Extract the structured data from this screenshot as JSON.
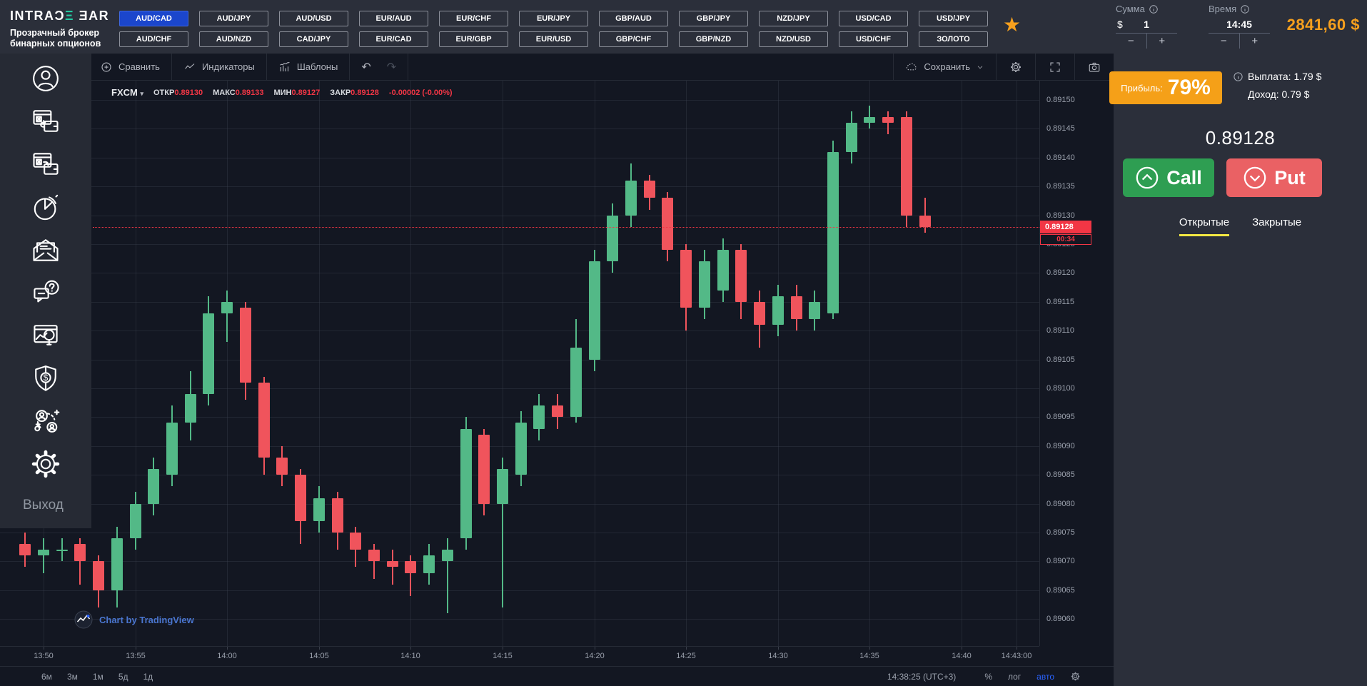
{
  "topbar": {
    "logo": {
      "part1": "INTRAƆ",
      "accent": "Ξ",
      "part2": " ƎAR",
      "subtitle1": "Прозрачный брокер",
      "subtitle2": "бинарных опционов"
    },
    "pairs_row1": [
      "AUD/CAD",
      "AUD/JPY",
      "AUD/USD",
      "EUR/AUD",
      "EUR/CHF",
      "EUR/JPY",
      "GBP/AUD",
      "GBP/JPY",
      "NZD/JPY",
      "USD/CAD",
      "USD/JPY"
    ],
    "pairs_row2": [
      "AUD/CHF",
      "AUD/NZD",
      "CAD/JPY",
      "EUR/CAD",
      "EUR/GBP",
      "EUR/USD",
      "GBP/CHF",
      "GBP/NZD",
      "NZD/USD",
      "USD/CHF",
      "ЗОЛОТО"
    ],
    "selected_pair": "AUD/CAD",
    "amount": {
      "label": "Сумма",
      "currency": "$",
      "value": "1",
      "minus": "−",
      "plus": "+"
    },
    "time": {
      "label": "Время",
      "value": "14:45",
      "minus": "−",
      "plus": "+"
    },
    "balance": "2841,60 $"
  },
  "sidebar": {
    "items": [
      {
        "id": "profile",
        "icon": "profile"
      },
      {
        "id": "deposit",
        "icon": "deposit"
      },
      {
        "id": "withdraw",
        "icon": "withdraw"
      },
      {
        "id": "statistics",
        "icon": "statistics"
      },
      {
        "id": "mail",
        "icon": "mail"
      },
      {
        "id": "support",
        "icon": "support"
      },
      {
        "id": "analytics",
        "icon": "analytics"
      },
      {
        "id": "safety",
        "icon": "safety"
      },
      {
        "id": "referral",
        "icon": "referral"
      },
      {
        "id": "settings",
        "icon": "settings"
      }
    ],
    "logout_label": "Выход"
  },
  "chart": {
    "toolbar": {
      "compare": "Сравнить",
      "indicators": "Индикаторы",
      "templates": "Шаблоны",
      "undo": "↶",
      "redo": "↷",
      "save": "Сохранить"
    },
    "legend": {
      "symbol": "FXCM",
      "caret": "▾",
      "open_label": "ОТКР",
      "open": "0.89130",
      "high_label": "МАКС",
      "high": "0.89133",
      "low_label": "МИН",
      "low": "0.89127",
      "close_label": "ЗАКР",
      "close": "0.89128",
      "change": "-0.00002 (-0.00%)"
    },
    "price_axis": [
      "0.89150",
      "0.89145",
      "0.89140",
      "0.89135",
      "0.89130",
      "0.89125",
      "0.89120",
      "0.89115",
      "0.89110",
      "0.89105",
      "0.89100",
      "0.89095",
      "0.89090",
      "0.89085",
      "0.89080",
      "0.89075",
      "0.89070",
      "0.89065",
      "0.89060"
    ],
    "time_axis": [
      "13:50",
      "13:55",
      "14:00",
      "14:05",
      "14:10",
      "14:15",
      "14:20",
      "14:25",
      "14:30",
      "14:35",
      "14:40",
      "14:43:00"
    ],
    "current_price": "0.89128",
    "countdown": "00:34",
    "watermark": "Chart by TradingView",
    "bottom": {
      "intervals": [
        "6м",
        "3м",
        "1м",
        "5д",
        "1д"
      ],
      "clock": "14:38:25 (UTC+3)",
      "percent": "%",
      "log": "лог",
      "auto": "авто"
    }
  },
  "chart_data": {
    "type": "candlestick",
    "symbol": "FXCM AUD/CAD",
    "interval": "1m",
    "ylim": [
      0.89055,
      0.89155
    ],
    "up_color": "#53b987",
    "down_color": "#f0545c",
    "grid": true,
    "columns": [
      "time",
      "open",
      "high",
      "low",
      "close"
    ],
    "rows": [
      [
        "13:49",
        0.89073,
        0.89075,
        0.89069,
        0.89071
      ],
      [
        "13:50",
        0.89071,
        0.89074,
        0.89068,
        0.89072
      ],
      [
        "13:51",
        0.89072,
        0.89074,
        0.8907,
        0.89072
      ],
      [
        "13:52",
        0.89073,
        0.89074,
        0.89066,
        0.8907
      ],
      [
        "13:53",
        0.8907,
        0.89071,
        0.89062,
        0.89065
      ],
      [
        "13:54",
        0.89065,
        0.89076,
        0.89062,
        0.89074
      ],
      [
        "13:55",
        0.89074,
        0.89082,
        0.89072,
        0.8908
      ],
      [
        "13:56",
        0.8908,
        0.89088,
        0.89078,
        0.89086
      ],
      [
        "13:57",
        0.89085,
        0.89097,
        0.89083,
        0.89094
      ],
      [
        "13:58",
        0.89094,
        0.89103,
        0.89091,
        0.89099
      ],
      [
        "13:59",
        0.89099,
        0.89116,
        0.89097,
        0.89113
      ],
      [
        "14:00",
        0.89113,
        0.89117,
        0.89108,
        0.89115
      ],
      [
        "14:01",
        0.89114,
        0.89115,
        0.89098,
        0.89101
      ],
      [
        "14:02",
        0.89101,
        0.89102,
        0.89085,
        0.89088
      ],
      [
        "14:03",
        0.89088,
        0.8909,
        0.89083,
        0.89085
      ],
      [
        "14:04",
        0.89085,
        0.89086,
        0.89073,
        0.89077
      ],
      [
        "14:05",
        0.89077,
        0.89083,
        0.89075,
        0.89081
      ],
      [
        "14:06",
        0.89081,
        0.89082,
        0.89072,
        0.89075
      ],
      [
        "14:07",
        0.89075,
        0.89076,
        0.89069,
        0.89072
      ],
      [
        "14:08",
        0.89072,
        0.89073,
        0.89067,
        0.8907
      ],
      [
        "14:09",
        0.8907,
        0.89072,
        0.89066,
        0.89069
      ],
      [
        "14:10",
        0.8907,
        0.89071,
        0.89064,
        0.89068
      ],
      [
        "14:11",
        0.89068,
        0.89073,
        0.89066,
        0.89071
      ],
      [
        "14:12",
        0.8907,
        0.89074,
        0.89061,
        0.89072
      ],
      [
        "14:13",
        0.89074,
        0.89095,
        0.89072,
        0.89093
      ],
      [
        "14:14",
        0.89092,
        0.89093,
        0.89078,
        0.8908
      ],
      [
        "14:15",
        0.8908,
        0.89088,
        0.89062,
        0.89086
      ],
      [
        "14:16",
        0.89085,
        0.89096,
        0.89083,
        0.89094
      ],
      [
        "14:17",
        0.89093,
        0.89099,
        0.89091,
        0.89097
      ],
      [
        "14:18",
        0.89097,
        0.89099,
        0.89093,
        0.89095
      ],
      [
        "14:19",
        0.89095,
        0.89112,
        0.89094,
        0.89107
      ],
      [
        "14:20",
        0.89105,
        0.89124,
        0.89103,
        0.89122
      ],
      [
        "14:21",
        0.89122,
        0.89132,
        0.8912,
        0.8913
      ],
      [
        "14:22",
        0.8913,
        0.89139,
        0.89128,
        0.89136
      ],
      [
        "14:23",
        0.89136,
        0.89137,
        0.89131,
        0.89133
      ],
      [
        "14:24",
        0.89133,
        0.89134,
        0.89122,
        0.89124
      ],
      [
        "14:25",
        0.89124,
        0.89125,
        0.8911,
        0.89114
      ],
      [
        "14:26",
        0.89114,
        0.89124,
        0.89112,
        0.89122
      ],
      [
        "14:27",
        0.89117,
        0.89126,
        0.89115,
        0.89124
      ],
      [
        "14:28",
        0.89124,
        0.89125,
        0.89112,
        0.89115
      ],
      [
        "14:29",
        0.89115,
        0.89117,
        0.89107,
        0.89111
      ],
      [
        "14:30",
        0.89111,
        0.89118,
        0.89109,
        0.89116
      ],
      [
        "14:31",
        0.89116,
        0.89118,
        0.8911,
        0.89112
      ],
      [
        "14:32",
        0.89112,
        0.89117,
        0.8911,
        0.89115
      ],
      [
        "14:33",
        0.89113,
        0.89143,
        0.89112,
        0.89141
      ],
      [
        "14:34",
        0.89141,
        0.89148,
        0.89139,
        0.89146
      ],
      [
        "14:35",
        0.89146,
        0.89149,
        0.89145,
        0.89147
      ],
      [
        "14:36",
        0.89147,
        0.89148,
        0.89144,
        0.89146
      ],
      [
        "14:37",
        0.89147,
        0.89148,
        0.89128,
        0.8913
      ],
      [
        "14:38",
        0.8913,
        0.89133,
        0.89127,
        0.89128
      ]
    ]
  },
  "panel": {
    "profit_label": "Прибыль:",
    "profit_value": "79%",
    "payout": "Выплата: 1.79 $",
    "income": "Доход: 0.79 $",
    "price": "0.89128",
    "call_label": "Call",
    "put_label": "Put",
    "tab_open": "Открытые",
    "tab_closed": "Закрытые"
  }
}
